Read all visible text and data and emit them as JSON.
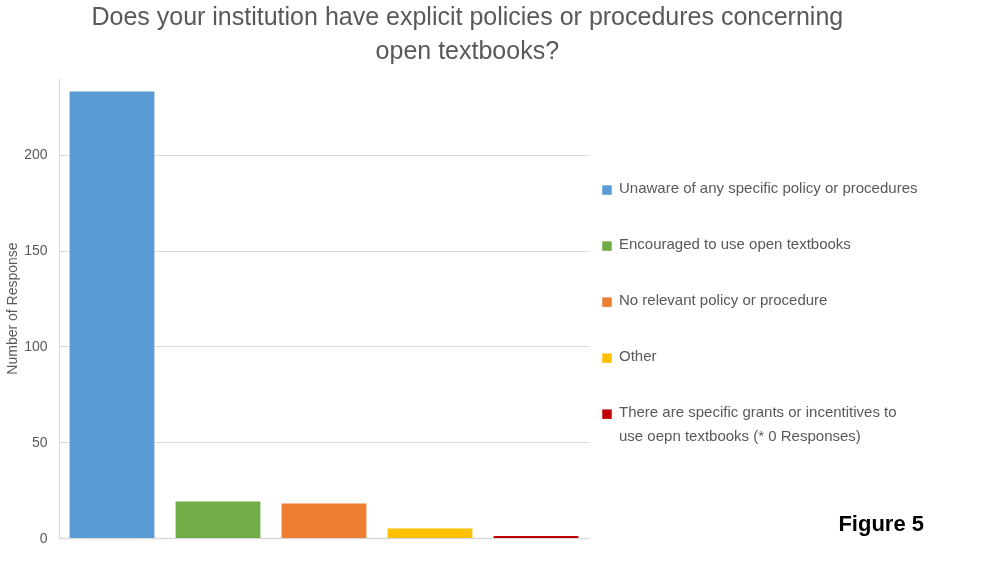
{
  "chart_data": {
    "type": "bar",
    "title": "Does your institution have explicit policies or procedures concerning open textbooks?",
    "ylabel": "Number of Response",
    "categories": [
      null,
      null,
      null,
      null,
      null
    ],
    "series": [
      {
        "name": "Unaware of any specific policy or procedures",
        "color": "#5b9bd5",
        "values": [
          233,
          null,
          null,
          null,
          null
        ]
      },
      {
        "name": "Encouraged to use open textbooks",
        "color": "#70ad47",
        "values": [
          null,
          19,
          null,
          null,
          null
        ]
      },
      {
        "name": "No relevant policy or procedure",
        "color": "#ed7d31",
        "values": [
          null,
          null,
          18,
          null,
          null
        ]
      },
      {
        "name": "Other",
        "color": "#ffc000",
        "values": [
          null,
          null,
          null,
          5,
          null
        ]
      },
      {
        "name": "There are specific grants or incentitives to use oepn textbooks (* 0 Responses)",
        "color": "#c00000",
        "values": [
          null,
          null,
          null,
          null,
          1
        ]
      }
    ],
    "ylim": [
      0,
      240
    ],
    "yticks": [
      0,
      50,
      100,
      150,
      200
    ],
    "grid": "y",
    "legend": "right",
    "tick_labels": "y",
    "annotations": [
      "Figure 5"
    ]
  }
}
